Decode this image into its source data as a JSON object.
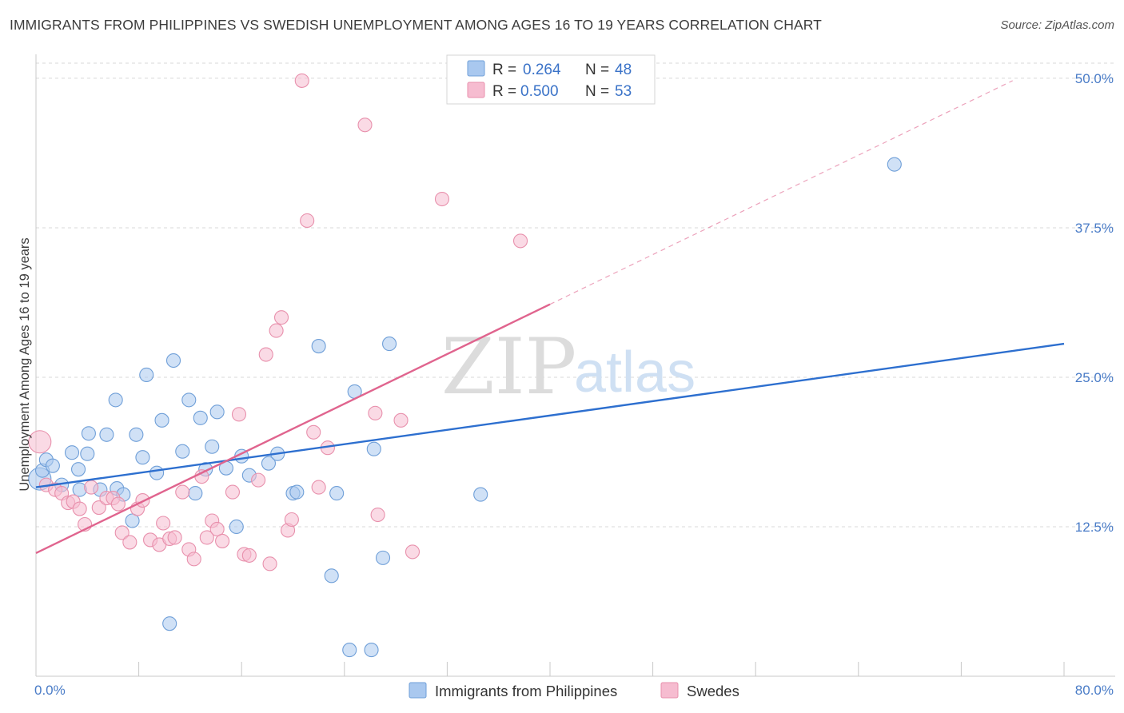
{
  "title": "IMMIGRANTS FROM PHILIPPINES VS SWEDISH UNEMPLOYMENT AMONG AGES 16 TO 19 YEARS CORRELATION CHART",
  "source": "Source: ZipAtlas.com",
  "watermark": {
    "zip": "ZIP",
    "atlas": "atlas"
  },
  "legend": {
    "rows": [
      {
        "r_label": "R = ",
        "r_value": "0.264",
        "n_label": "N = ",
        "n_value": "48"
      },
      {
        "r_label": "R = ",
        "r_value": "0.500",
        "n_label": "N = ",
        "n_value": "53"
      }
    ]
  },
  "colors": {
    "blue_fill": "#a9c8ef",
    "blue_stroke": "#6f9fd8",
    "blue_line": "#2d6fcf",
    "pink_fill": "#f6bcd0",
    "pink_stroke": "#e890ac",
    "pink_line": "#e0648e",
    "grid": "#d9d9d9",
    "tick_text": "#4a7cc7"
  },
  "chart_data": {
    "type": "scatter",
    "title": "IMMIGRANTS FROM PHILIPPINES VS SWEDISH UNEMPLOYMENT AMONG AGES 16 TO 19 YEARS CORRELATION CHART",
    "xlabel": "",
    "ylabel": "Unemployment Among Ages 16 to 19 years",
    "xlim": [
      0,
      80
    ],
    "ylim": [
      0,
      52
    ],
    "x_tick_labels": [
      "0.0%",
      "80.0%"
    ],
    "y_ticks": [
      12.5,
      25.0,
      37.5,
      50.0
    ],
    "y_tick_labels": [
      "12.5%",
      "25.0%",
      "37.5%",
      "50.0%"
    ],
    "grid": true,
    "legend_position": "top-center",
    "series": [
      {
        "name": "Immigrants from Philippines",
        "color": "#a9c8ef",
        "trend": {
          "x": [
            0,
            80
          ],
          "y": [
            15.8,
            27.8
          ],
          "solid": true
        },
        "points": [
          [
            0.3,
            16.5
          ],
          [
            0.5,
            17.2
          ],
          [
            0.8,
            18.1
          ],
          [
            1.3,
            17.6
          ],
          [
            2.0,
            16.0
          ],
          [
            2.8,
            18.7
          ],
          [
            3.4,
            15.6
          ],
          [
            3.3,
            17.3
          ],
          [
            4.0,
            18.6
          ],
          [
            4.1,
            20.3
          ],
          [
            5.0,
            15.6
          ],
          [
            5.5,
            20.2
          ],
          [
            6.3,
            15.7
          ],
          [
            6.2,
            23.1
          ],
          [
            6.8,
            15.2
          ],
          [
            7.5,
            13.0
          ],
          [
            7.8,
            20.2
          ],
          [
            8.3,
            18.3
          ],
          [
            8.6,
            25.2
          ],
          [
            9.4,
            17.0
          ],
          [
            9.8,
            21.4
          ],
          [
            10.4,
            4.4
          ],
          [
            10.7,
            26.4
          ],
          [
            11.4,
            18.8
          ],
          [
            11.9,
            23.1
          ],
          [
            12.4,
            15.3
          ],
          [
            12.8,
            21.6
          ],
          [
            13.2,
            17.3
          ],
          [
            13.7,
            19.2
          ],
          [
            14.1,
            22.1
          ],
          [
            14.8,
            17.4
          ],
          [
            15.6,
            12.5
          ],
          [
            16.0,
            18.4
          ],
          [
            16.6,
            16.8
          ],
          [
            18.1,
            17.8
          ],
          [
            18.8,
            18.6
          ],
          [
            20.0,
            15.3
          ],
          [
            20.3,
            15.4
          ],
          [
            22.0,
            27.6
          ],
          [
            23.0,
            8.4
          ],
          [
            23.4,
            15.3
          ],
          [
            24.4,
            2.2
          ],
          [
            24.8,
            23.8
          ],
          [
            26.1,
            2.2
          ],
          [
            26.3,
            19.0
          ],
          [
            27.0,
            9.9
          ],
          [
            27.5,
            27.8
          ],
          [
            34.6,
            15.2
          ],
          [
            66.8,
            42.8
          ]
        ]
      },
      {
        "name": "Swedes",
        "color": "#f6bcd0",
        "trend": {
          "x": [
            0,
            40
          ],
          "y": [
            10.3,
            31.1
          ],
          "solid": true,
          "dashed_extension": {
            "x": [
              40,
              76
            ],
            "y": [
              31.1,
              49.8
            ]
          }
        },
        "points": [
          [
            0.3,
            19.6
          ],
          [
            0.8,
            16.0
          ],
          [
            1.5,
            15.6
          ],
          [
            2.0,
            15.3
          ],
          [
            2.5,
            14.5
          ],
          [
            2.9,
            14.6
          ],
          [
            3.4,
            14.0
          ],
          [
            3.8,
            12.7
          ],
          [
            4.3,
            15.8
          ],
          [
            4.9,
            14.1
          ],
          [
            5.5,
            14.9
          ],
          [
            6.0,
            14.9
          ],
          [
            6.4,
            14.4
          ],
          [
            6.7,
            12.0
          ],
          [
            7.3,
            11.2
          ],
          [
            7.9,
            14.0
          ],
          [
            8.3,
            14.7
          ],
          [
            8.9,
            11.4
          ],
          [
            9.6,
            11.0
          ],
          [
            9.9,
            12.8
          ],
          [
            10.4,
            11.5
          ],
          [
            10.8,
            11.6
          ],
          [
            11.4,
            15.4
          ],
          [
            11.9,
            10.6
          ],
          [
            12.3,
            9.8
          ],
          [
            12.9,
            16.7
          ],
          [
            13.3,
            11.6
          ],
          [
            13.7,
            13.0
          ],
          [
            14.1,
            12.3
          ],
          [
            14.5,
            11.3
          ],
          [
            15.3,
            15.4
          ],
          [
            15.8,
            21.9
          ],
          [
            16.2,
            10.2
          ],
          [
            16.6,
            10.1
          ],
          [
            17.3,
            16.4
          ],
          [
            17.9,
            26.9
          ],
          [
            18.2,
            9.4
          ],
          [
            18.7,
            28.9
          ],
          [
            19.1,
            30.0
          ],
          [
            19.6,
            12.2
          ],
          [
            19.9,
            13.1
          ],
          [
            20.7,
            49.8
          ],
          [
            21.1,
            38.1
          ],
          [
            21.6,
            20.4
          ],
          [
            22.0,
            15.8
          ],
          [
            22.7,
            19.1
          ],
          [
            25.6,
            46.1
          ],
          [
            26.4,
            22.0
          ],
          [
            26.6,
            13.5
          ],
          [
            28.4,
            21.4
          ],
          [
            29.3,
            10.4
          ],
          [
            31.6,
            39.9
          ],
          [
            37.7,
            36.4
          ]
        ]
      }
    ]
  },
  "bottom_legend": {
    "items": [
      {
        "label": "Immigrants from Philippines"
      },
      {
        "label": "Swedes"
      }
    ]
  }
}
